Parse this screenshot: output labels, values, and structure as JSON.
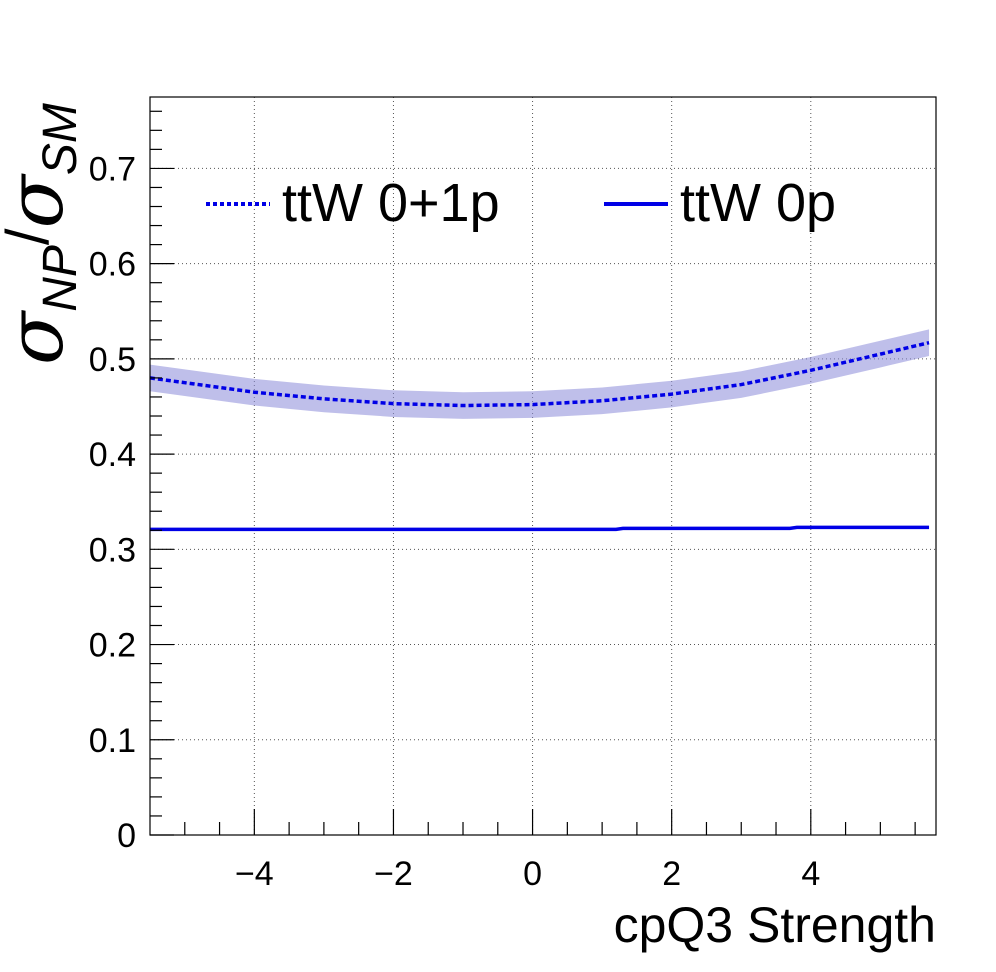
{
  "chart_data": {
    "type": "line",
    "xlabel": "cpQ3 Strength",
    "ylabel": "σ_NP/σ_SM",
    "ylabel_parts": {
      "sym1": "σ",
      "sub1": "NP",
      "slash": "/",
      "sym2": "σ",
      "sub2": "SM"
    },
    "xlim": [
      -5.5,
      5.8
    ],
    "ylim": [
      0,
      0.775
    ],
    "x_ticks": [
      -4,
      -2,
      0,
      2,
      4
    ],
    "x_tick_labels": [
      "−4",
      "−2",
      "0",
      "2",
      "4"
    ],
    "y_ticks": [
      0,
      0.1,
      0.2,
      0.3,
      0.4,
      0.5,
      0.6,
      0.7
    ],
    "y_tick_labels": [
      "0",
      "0.1",
      "0.2",
      "0.3",
      "0.4",
      "0.5",
      "0.6",
      "0.7"
    ],
    "grid": true,
    "legend_placement": "top",
    "series": [
      {
        "name": "ttW 0+1p",
        "style": "dashed",
        "color": "#0000e6",
        "band_color": "#8a8ad8",
        "x": [
          -5.5,
          -5,
          -4,
          -3,
          -2,
          -1,
          0,
          1,
          2,
          3,
          4,
          5,
          5.7
        ],
        "y": [
          0.48,
          0.475,
          0.465,
          0.458,
          0.453,
          0.451,
          0.452,
          0.456,
          0.463,
          0.473,
          0.488,
          0.505,
          0.517
        ],
        "band_halfwidth": 0.014
      },
      {
        "name": "ttW 0p",
        "style": "solid",
        "color": "#0000e6",
        "x": [
          -5.5,
          -4,
          -2,
          0,
          1.2,
          1.3,
          2,
          3.7,
          3.8,
          5.7
        ],
        "y": [
          0.321,
          0.321,
          0.321,
          0.321,
          0.321,
          0.322,
          0.322,
          0.322,
          0.323,
          0.323
        ]
      }
    ]
  }
}
